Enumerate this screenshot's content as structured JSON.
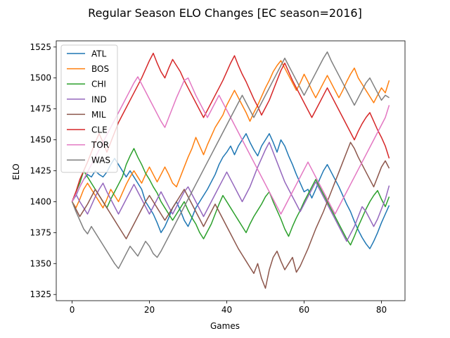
{
  "chart_data": {
    "type": "line",
    "title": "Regular Season ELO Changes [EC season=2016]",
    "xlabel": "Games",
    "ylabel": "ELO",
    "xlim": [
      -4.1,
      86.1
    ],
    "ylim": [
      1320,
      1530
    ],
    "xticks": [
      0,
      20,
      40,
      60,
      80
    ],
    "yticks": [
      1325,
      1350,
      1375,
      1400,
      1425,
      1450,
      1475,
      1500,
      1525
    ],
    "grid": false,
    "legend_position": "top-left",
    "x": [
      0,
      1,
      2,
      3,
      4,
      5,
      6,
      7,
      8,
      9,
      10,
      11,
      12,
      13,
      14,
      15,
      16,
      17,
      18,
      19,
      20,
      21,
      22,
      23,
      24,
      25,
      26,
      27,
      28,
      29,
      30,
      31,
      32,
      33,
      34,
      35,
      36,
      37,
      38,
      39,
      40,
      41,
      42,
      43,
      44,
      45,
      46,
      47,
      48,
      49,
      50,
      51,
      52,
      53,
      54,
      55,
      56,
      57,
      58,
      59,
      60,
      61,
      62,
      63,
      64,
      65,
      66,
      67,
      68,
      69,
      70,
      71,
      72,
      73,
      74,
      75,
      76,
      77,
      78,
      79,
      80,
      81,
      82
    ],
    "series": [
      {
        "name": "ATL",
        "color": "#1f77b4",
        "values": [
          1400,
          1405,
          1412,
          1418,
          1422,
          1420,
          1425,
          1422,
          1420,
          1424,
          1430,
          1435,
          1430,
          1425,
          1420,
          1425,
          1420,
          1415,
          1410,
          1400,
          1395,
          1390,
          1383,
          1375,
          1380,
          1387,
          1395,
          1400,
          1393,
          1385,
          1380,
          1387,
          1395,
          1400,
          1405,
          1410,
          1416,
          1422,
          1430,
          1436,
          1440,
          1445,
          1438,
          1445,
          1450,
          1455,
          1448,
          1442,
          1437,
          1445,
          1450,
          1455,
          1448,
          1440,
          1450,
          1445,
          1437,
          1430,
          1422,
          1415,
          1408,
          1410,
          1403,
          1410,
          1418,
          1425,
          1430,
          1424,
          1418,
          1412,
          1405,
          1398,
          1392,
          1384,
          1377,
          1371,
          1366,
          1362,
          1368,
          1375,
          1383,
          1390,
          1397
        ]
      },
      {
        "name": "BOS",
        "color": "#ff7f0e",
        "values": [
          1400,
          1395,
          1402,
          1410,
          1415,
          1410,
          1405,
          1400,
          1395,
          1402,
          1410,
          1405,
          1400,
          1407,
          1414,
          1420,
          1425,
          1420,
          1415,
          1422,
          1428,
          1422,
          1416,
          1422,
          1428,
          1422,
          1415,
          1412,
          1420,
          1428,
          1436,
          1443,
          1452,
          1445,
          1438,
          1446,
          1453,
          1460,
          1465,
          1470,
          1478,
          1484,
          1490,
          1484,
          1478,
          1472,
          1465,
          1472,
          1478,
          1485,
          1492,
          1498,
          1505,
          1510,
          1514,
          1508,
          1502,
          1496,
          1490,
          1496,
          1503,
          1497,
          1490,
          1484,
          1490,
          1496,
          1502,
          1496,
          1490,
          1484,
          1490,
          1497,
          1503,
          1508,
          1500,
          1495,
          1490,
          1485,
          1480,
          1486,
          1492,
          1488,
          1498
        ]
      },
      {
        "name": "CHI",
        "color": "#2ca02c",
        "values": [
          1400,
          1408,
          1415,
          1425,
          1420,
          1415,
          1410,
          1405,
          1400,
          1395,
          1402,
          1408,
          1414,
          1420,
          1430,
          1437,
          1443,
          1436,
          1430,
          1423,
          1418,
          1412,
          1407,
          1400,
          1395,
          1390,
          1385,
          1390,
          1395,
          1400,
          1393,
          1387,
          1382,
          1375,
          1370,
          1376,
          1382,
          1390,
          1398,
          1405,
          1400,
          1395,
          1390,
          1385,
          1380,
          1375,
          1382,
          1388,
          1393,
          1398,
          1404,
          1408,
          1400,
          1393,
          1386,
          1378,
          1372,
          1380,
          1387,
          1393,
          1400,
          1406,
          1412,
          1418,
          1412,
          1406,
          1400,
          1394,
          1388,
          1382,
          1376,
          1370,
          1365,
          1372,
          1380,
          1387,
          1394,
          1400,
          1405,
          1409,
          1402,
          1396,
          1404
        ]
      },
      {
        "name": "IND",
        "color": "#9467bd",
        "values": [
          1400,
          1406,
          1400,
          1395,
          1390,
          1397,
          1404,
          1410,
          1415,
          1408,
          1402,
          1396,
          1390,
          1396,
          1402,
          1408,
          1414,
          1408,
          1402,
          1396,
          1390,
          1396,
          1402,
          1408,
          1402,
          1396,
          1390,
          1396,
          1402,
          1408,
          1412,
          1406,
          1400,
          1394,
          1388,
          1394,
          1400,
          1406,
          1412,
          1418,
          1424,
          1418,
          1412,
          1406,
          1400,
          1406,
          1412,
          1420,
          1428,
          1435,
          1442,
          1448,
          1440,
          1432,
          1424,
          1416,
          1410,
          1404,
          1398,
          1392,
          1398,
          1404,
          1410,
          1416,
          1410,
          1404,
          1398,
          1392,
          1386,
          1380,
          1374,
          1368,
          1374,
          1380,
          1388,
          1396,
          1392,
          1386,
          1380,
          1386,
          1394,
          1402,
          1413
        ]
      },
      {
        "name": "MIL",
        "color": "#8c564b",
        "values": [
          1400,
          1394,
          1388,
          1393,
          1398,
          1404,
          1410,
          1405,
          1400,
          1395,
          1390,
          1385,
          1380,
          1375,
          1370,
          1376,
          1382,
          1388,
          1394,
          1400,
          1405,
          1400,
          1395,
          1390,
          1385,
          1390,
          1395,
          1400,
          1405,
          1410,
          1404,
          1398,
          1392,
          1386,
          1380,
          1386,
          1392,
          1398,
          1392,
          1386,
          1380,
          1374,
          1368,
          1362,
          1357,
          1352,
          1347,
          1342,
          1350,
          1338,
          1330,
          1345,
          1355,
          1360,
          1352,
          1345,
          1350,
          1355,
          1343,
          1348,
          1355,
          1362,
          1370,
          1378,
          1385,
          1392,
          1400,
          1408,
          1416,
          1424,
          1432,
          1440,
          1448,
          1443,
          1436,
          1430,
          1424,
          1418,
          1412,
          1420,
          1428,
          1433,
          1427
        ]
      },
      {
        "name": "CLE",
        "color": "#d62728",
        "values": [
          1400,
          1408,
          1418,
          1425,
          1432,
          1440,
          1448,
          1455,
          1448,
          1440,
          1448,
          1456,
          1464,
          1470,
          1476,
          1482,
          1488,
          1494,
          1500,
          1507,
          1514,
          1520,
          1512,
          1505,
          1500,
          1508,
          1515,
          1510,
          1505,
          1498,
          1492,
          1486,
          1480,
          1474,
          1468,
          1474,
          1480,
          1486,
          1492,
          1498,
          1505,
          1512,
          1518,
          1510,
          1503,
          1497,
          1490,
          1483,
          1477,
          1470,
          1476,
          1482,
          1490,
          1498,
          1506,
          1512,
          1505,
          1498,
          1492,
          1486,
          1480,
          1474,
          1468,
          1474,
          1480,
          1486,
          1492,
          1486,
          1480,
          1474,
          1468,
          1462,
          1456,
          1450,
          1457,
          1463,
          1468,
          1472,
          1465,
          1458,
          1452,
          1445,
          1435
        ]
      },
      {
        "name": "TOR",
        "color": "#e377c2",
        "values": [
          1400,
          1406,
          1412,
          1418,
          1424,
          1430,
          1436,
          1442,
          1448,
          1454,
          1460,
          1466,
          1472,
          1478,
          1484,
          1490,
          1496,
          1501,
          1495,
          1489,
          1483,
          1477,
          1471,
          1465,
          1460,
          1468,
          1476,
          1484,
          1491,
          1498,
          1500,
          1493,
          1486,
          1480,
          1474,
          1468,
          1474,
          1480,
          1486,
          1480,
          1474,
          1468,
          1462,
          1456,
          1450,
          1444,
          1438,
          1432,
          1426,
          1420,
          1414,
          1408,
          1402,
          1396,
          1390,
          1396,
          1402,
          1408,
          1414,
          1420,
          1426,
          1432,
          1426,
          1420,
          1414,
          1408,
          1402,
          1396,
          1390,
          1396,
          1402,
          1408,
          1414,
          1420,
          1426,
          1432,
          1438,
          1444,
          1450,
          1456,
          1462,
          1468,
          1478
        ]
      },
      {
        "name": "WAS",
        "color": "#7f7f7f",
        "values": [
          1400,
          1392,
          1385,
          1378,
          1374,
          1380,
          1375,
          1370,
          1365,
          1360,
          1355,
          1350,
          1346,
          1352,
          1358,
          1364,
          1360,
          1356,
          1362,
          1368,
          1364,
          1358,
          1355,
          1360,
          1366,
          1372,
          1378,
          1384,
          1390,
          1396,
          1402,
          1408,
          1414,
          1420,
          1426,
          1432,
          1438,
          1444,
          1450,
          1456,
          1462,
          1468,
          1474,
          1480,
          1486,
          1480,
          1474,
          1468,
          1474,
          1480,
          1486,
          1492,
          1498,
          1504,
          1510,
          1516,
          1510,
          1504,
          1498,
          1492,
          1486,
          1492,
          1498,
          1504,
          1510,
          1516,
          1521,
          1514,
          1508,
          1502,
          1496,
          1490,
          1484,
          1478,
          1484,
          1490,
          1496,
          1500,
          1494,
          1488,
          1482,
          1486,
          1484
        ]
      }
    ]
  }
}
